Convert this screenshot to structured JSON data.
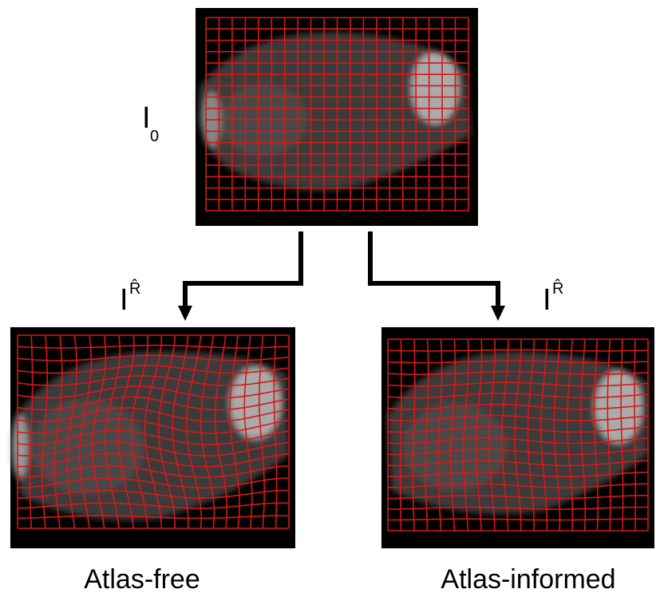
{
  "top": {
    "label": "I",
    "subscript": "0"
  },
  "left": {
    "label": "I",
    "superscript": "R̂",
    "caption": "Atlas-free"
  },
  "right": {
    "label": "I",
    "superscript": "R̂",
    "caption": "Atlas-informed"
  }
}
